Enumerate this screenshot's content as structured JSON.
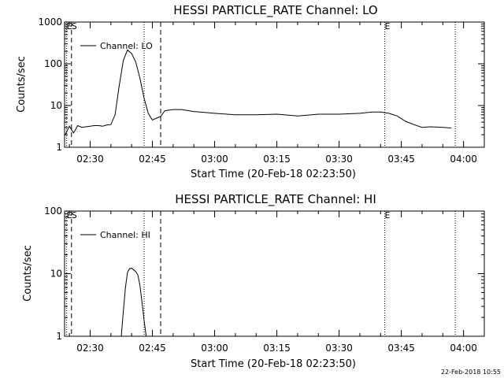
{
  "chart_data": [
    {
      "type": "line",
      "title": "HESSI PARTICLE_RATE Channel: LO",
      "xlabel": "Start Time (20-Feb-18 02:23:50)",
      "ylabel": "Counts/sec",
      "yscale": "log",
      "ylim": [
        1,
        1000
      ],
      "xlim": [
        "02:23:50",
        "04:05:00"
      ],
      "xticks": [
        "02:30",
        "02:45",
        "03:00",
        "03:15",
        "03:30",
        "03:45",
        "04:00"
      ],
      "yticks": [
        "1",
        "10",
        "100",
        "1000"
      ],
      "legend": {
        "entries": [
          "Channel: LO"
        ],
        "placement": "top-left"
      },
      "flags": [
        {
          "label": "E",
          "time": "02:24:20",
          "style": "dotted"
        },
        {
          "label": "S",
          "time": "02:25:30",
          "style": "dashed"
        },
        {
          "label": "",
          "time": "02:43:00",
          "style": "dotted"
        },
        {
          "label": "",
          "time": "02:47:00",
          "style": "dashed"
        },
        {
          "label": "E",
          "time": "03:41:00",
          "style": "dotted"
        },
        {
          "label": "",
          "time": "03:58:00",
          "style": "dotted"
        }
      ],
      "series": [
        {
          "name": "Channel: LO",
          "x": [
            "02:24:00",
            "02:25:00",
            "02:26:00",
            "02:27:00",
            "02:28:00",
            "02:29:00",
            "02:30:00",
            "02:31:00",
            "02:32:00",
            "02:33:00",
            "02:34:00",
            "02:35:00",
            "02:36:00",
            "02:37:00",
            "02:38:00",
            "02:39:00",
            "02:40:00",
            "02:41:00",
            "02:42:00",
            "02:43:00",
            "02:44:00",
            "02:45:00",
            "02:46:00",
            "02:47:00",
            "02:48:00",
            "02:50:00",
            "02:52:00",
            "02:55:00",
            "03:00:00",
            "03:05:00",
            "03:10:00",
            "03:15:00",
            "03:20:00",
            "03:25:00",
            "03:30:00",
            "03:35:00",
            "03:38:00",
            "03:40:00",
            "03:42:00",
            "03:44:00",
            "03:46:00",
            "03:48:00",
            "03:50:00",
            "03:52:00",
            "03:55:00",
            "03:57:00"
          ],
          "y": [
            2.0,
            3.2,
            2.2,
            3.3,
            3.0,
            3.1,
            3.2,
            3.3,
            3.3,
            3.2,
            3.4,
            3.5,
            6.0,
            30,
            120,
            215,
            175,
            110,
            45,
            15,
            6.5,
            4.5,
            5.0,
            5.5,
            7.5,
            8.0,
            8.0,
            7.2,
            6.5,
            6.0,
            6.0,
            6.2,
            5.6,
            6.2,
            6.2,
            6.5,
            7.0,
            7.0,
            6.5,
            5.6,
            4.2,
            3.5,
            3.0,
            3.1,
            3.0,
            2.9
          ]
        }
      ]
    },
    {
      "type": "line",
      "title": "HESSI PARTICLE_RATE Channel: HI",
      "xlabel": "Start Time (20-Feb-18 02:23:50)",
      "ylabel": "Counts/sec",
      "yscale": "log",
      "ylim": [
        1,
        100
      ],
      "xlim": [
        "02:23:50",
        "04:05:00"
      ],
      "xticks": [
        "02:30",
        "02:45",
        "03:00",
        "03:15",
        "03:30",
        "03:45",
        "04:00"
      ],
      "yticks": [
        "1",
        "10",
        "100"
      ],
      "legend": {
        "entries": [
          "Channel: HI"
        ],
        "placement": "top-left"
      },
      "flags": [
        {
          "label": "E",
          "time": "02:24:20",
          "style": "dotted"
        },
        {
          "label": "S",
          "time": "02:25:30",
          "style": "dashed"
        },
        {
          "label": "",
          "time": "02:43:00",
          "style": "dotted"
        },
        {
          "label": "",
          "time": "02:47:00",
          "style": "dashed"
        },
        {
          "label": "E",
          "time": "03:41:00",
          "style": "dotted"
        },
        {
          "label": "",
          "time": "03:58:00",
          "style": "dotted"
        }
      ],
      "series": [
        {
          "name": "Channel: HI",
          "x": [
            "02:37:30",
            "02:38:00",
            "02:38:30",
            "02:39:00",
            "02:39:30",
            "02:40:00",
            "02:40:30",
            "02:41:00",
            "02:41:30",
            "02:42:00",
            "02:42:30",
            "02:43:00",
            "02:43:30"
          ],
          "y": [
            1.0,
            2.5,
            6.0,
            10.5,
            12.0,
            12.2,
            11.5,
            10.8,
            9.5,
            6.5,
            3.5,
            1.8,
            1.0
          ]
        }
      ]
    }
  ],
  "footer": {
    "timestamp": "22-Feb-2018 10:55"
  }
}
